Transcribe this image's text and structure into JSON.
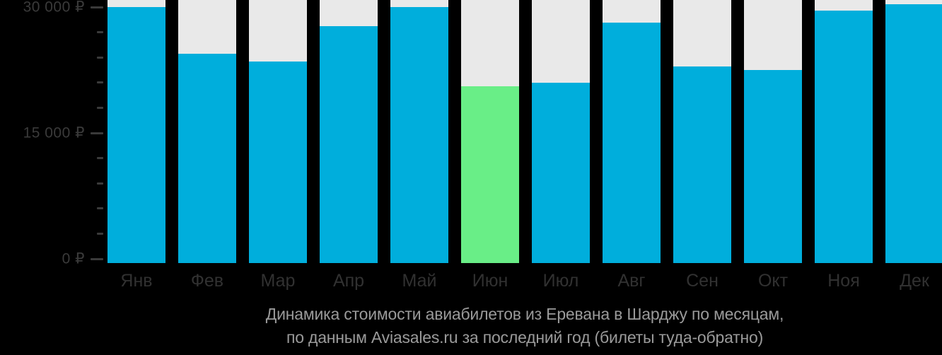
{
  "chart_data": {
    "type": "bar",
    "title_line1": "Динамика стоимости авиабилетов из Еревана в Шарджу по месяцам,",
    "title_line2": "по данным Aviasales.ru за последний год (билеты туда-обратно)",
    "categories": [
      "Янв",
      "Фев",
      "Мар",
      "Апр",
      "Май",
      "Июн",
      "Июл",
      "Авг",
      "Сен",
      "Окт",
      "Ноя",
      "Дек"
    ],
    "values": [
      30000,
      24500,
      23600,
      27800,
      30000,
      20700,
      21100,
      28200,
      23000,
      22600,
      29600,
      30300
    ],
    "highlight_index": 5,
    "xlabel": "",
    "ylabel": "",
    "ylim": [
      0,
      30000
    ],
    "y_ticks": [
      {
        "value": 30000,
        "label": "30 000 ₽"
      },
      {
        "value": 15000,
        "label": "15 000 ₽"
      },
      {
        "value": 0,
        "label": "0 ₽"
      }
    ],
    "y_minor_step": 3000,
    "grid": false,
    "legend": null,
    "colors": {
      "bar": "#00AEDC",
      "bar_highlight": "#69EE87",
      "bar_track": "#E9E9E9",
      "axis_text": "#3A3A3A",
      "month_text": "#313131",
      "caption_text": "#9A9A9A",
      "background": "#000000"
    }
  }
}
